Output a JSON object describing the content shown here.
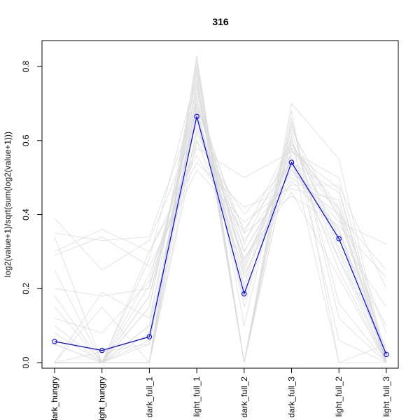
{
  "chart_data": {
    "type": "line",
    "title": "316",
    "ylabel": "log2(value+1)/sqrt(sum(log2(value+1)))",
    "xlabel": "",
    "categories": [
      "dark_hungry",
      "light_hungry",
      "dark_full_1",
      "light_full_1",
      "dark_full_2",
      "dark_full_3",
      "light_full_2",
      "light_full_3"
    ],
    "y_ticks": [
      0.0,
      0.2,
      0.4,
      0.6,
      0.8
    ],
    "y_tick_labels": [
      "0.0",
      "0.2",
      "0.4",
      "0.6",
      "0.8"
    ],
    "ylim": [
      -0.015,
      0.87
    ],
    "grid": false,
    "highlight": {
      "color": "#0000ff",
      "values": [
        0.057,
        0.033,
        0.07,
        0.665,
        0.186,
        0.541,
        0.335,
        0.022
      ]
    },
    "background_series_color": "#d9d9d9",
    "background_series": [
      [
        0.35,
        0.33,
        0.34,
        0.7,
        0.3,
        0.52,
        0.38,
        0.32
      ],
      [
        0.39,
        0.25,
        0.33,
        0.64,
        0.28,
        0.5,
        0.4,
        0.25
      ],
      [
        0.3,
        0.36,
        0.3,
        0.56,
        0.35,
        0.45,
        0.37,
        0.23
      ],
      [
        0.34,
        0.0,
        0.28,
        0.78,
        0.0,
        0.58,
        0.4,
        0.0
      ],
      [
        0.29,
        0.34,
        0.26,
        0.52,
        0.38,
        0.48,
        0.48,
        0.2
      ],
      [
        0.2,
        0.18,
        0.2,
        0.69,
        0.35,
        0.6,
        0.34,
        0.15
      ],
      [
        0.15,
        0.0,
        0.1,
        0.81,
        0.0,
        0.64,
        0.31,
        0.02
      ],
      [
        0.1,
        0.0,
        0.15,
        0.74,
        0.25,
        0.56,
        0.0,
        0.05
      ],
      [
        0.0,
        0.0,
        0.0,
        0.83,
        0.0,
        0.7,
        0.55,
        0.0
      ],
      [
        0.0,
        0.15,
        0.0,
        0.72,
        0.32,
        0.59,
        0.42,
        0.0
      ],
      [
        0.05,
        0.0,
        0.05,
        0.76,
        0.0,
        0.62,
        0.3,
        0.0
      ],
      [
        0.0,
        0.0,
        0.21,
        0.6,
        0.4,
        0.54,
        0.46,
        0.01
      ],
      [
        0.0,
        0.0,
        0.0,
        0.8,
        0.0,
        0.68,
        0.0,
        0.0
      ],
      [
        0.0,
        0.0,
        0.24,
        0.58,
        0.5,
        0.57,
        0.5,
        0.0
      ],
      [
        0.0,
        0.19,
        0.12,
        0.67,
        0.23,
        0.53,
        0.35,
        0.0
      ],
      [
        0.25,
        0.0,
        0.18,
        0.71,
        0.27,
        0.55,
        0.33,
        0.1
      ],
      [
        0.0,
        0.0,
        0.06,
        0.75,
        0.15,
        0.6,
        0.28,
        0.0
      ],
      [
        0.0,
        0.0,
        0.0,
        0.68,
        0.21,
        0.63,
        0.39,
        0.03
      ],
      [
        0.18,
        0.0,
        0.0,
        0.63,
        0.33,
        0.51,
        0.42,
        0.08
      ],
      [
        0.0,
        0.0,
        0.15,
        0.77,
        0.0,
        0.58,
        0.25,
        0.0
      ],
      [
        0.12,
        0.08,
        0.22,
        0.66,
        0.24,
        0.49,
        0.36,
        0.02
      ],
      [
        0.0,
        0.0,
        0.3,
        0.54,
        0.42,
        0.47,
        0.44,
        0.01
      ],
      [
        0.0,
        0.0,
        0.0,
        0.79,
        0.1,
        0.65,
        0.16,
        0.0
      ],
      [
        0.05,
        0.0,
        0.0,
        0.73,
        0.2,
        0.61,
        0.06,
        0.0
      ],
      [
        0.0,
        0.03,
        0.05,
        0.7,
        0.26,
        0.57,
        0.47,
        0.0
      ],
      [
        0.08,
        0.0,
        0.1,
        0.62,
        0.36,
        0.54,
        0.28,
        0.04
      ],
      [
        0.0,
        0.0,
        0.0,
        0.82,
        0.0,
        0.66,
        0.12,
        0.0
      ],
      [
        0.0,
        0.0,
        0.18,
        0.65,
        0.3,
        0.52,
        0.36,
        0.0
      ],
      [
        0.0,
        0.0,
        0.0,
        0.6,
        0.28,
        0.46,
        0.23,
        0.0
      ],
      [
        0.0,
        0.0,
        0.08,
        0.69,
        0.17,
        0.59,
        0.41,
        0.0
      ]
    ]
  }
}
